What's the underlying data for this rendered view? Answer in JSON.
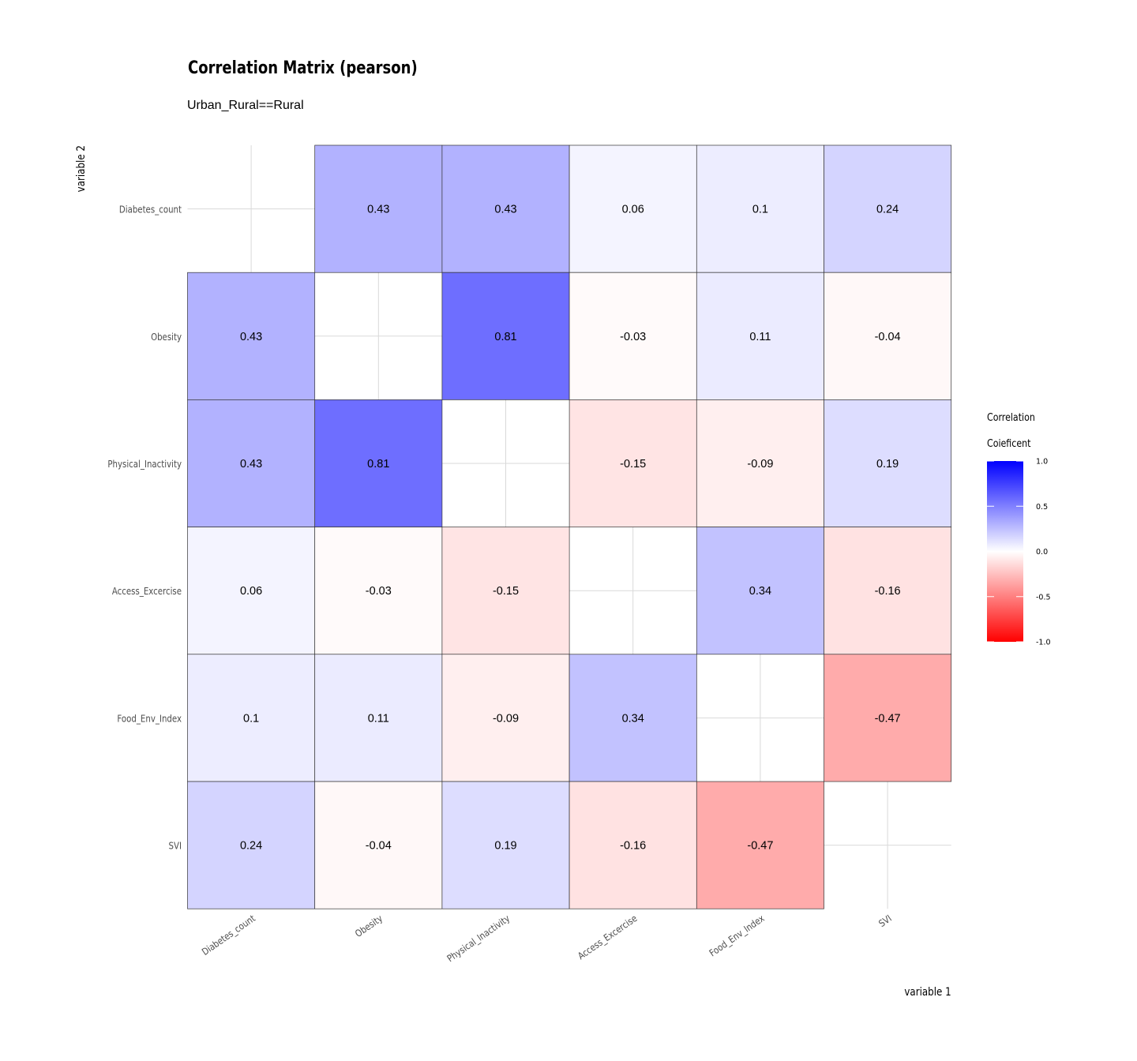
{
  "chart_data": {
    "type": "heatmap",
    "title": "Correlation Matrix (pearson)",
    "subtitle": "Urban_Rural==Rural",
    "xlabel": "variable 1",
    "ylabel": "variable 2",
    "variables": [
      "Diabetes_count",
      "Obesity",
      "Physical_Inactivity",
      "Access_Excercise",
      "Food_Env_Index",
      "SVI"
    ],
    "matrix": [
      [
        null,
        0.43,
        0.43,
        0.06,
        0.1,
        0.24
      ],
      [
        0.43,
        null,
        0.81,
        -0.03,
        0.11,
        -0.04
      ],
      [
        0.43,
        0.81,
        null,
        -0.15,
        -0.09,
        0.19
      ],
      [
        0.06,
        -0.03,
        -0.15,
        null,
        0.34,
        -0.16
      ],
      [
        0.1,
        0.11,
        -0.09,
        0.34,
        null,
        -0.47
      ],
      [
        0.24,
        -0.04,
        0.19,
        -0.16,
        -0.47,
        null
      ]
    ],
    "legend": {
      "title_lines": [
        "Correlation",
        "Coieficent"
      ],
      "ticks": [
        "1.0",
        "0.5",
        "0.0",
        "-0.5",
        "-1.0"
      ],
      "range": [
        -1,
        1
      ],
      "placement": "right"
    },
    "colors": {
      "low": "#ff0000",
      "mid": "#ffffff",
      "high": "#0000ff"
    },
    "grid": true
  }
}
